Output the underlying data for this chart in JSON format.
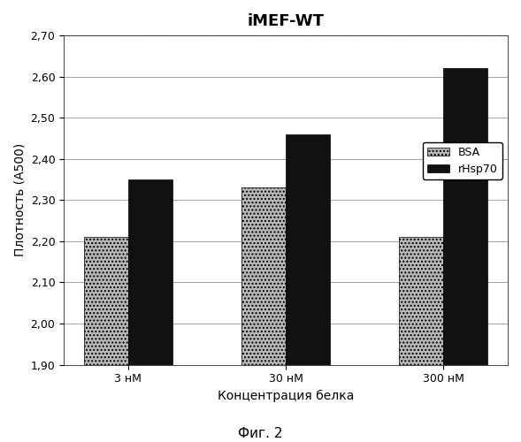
{
  "title": "iMEF-WT",
  "xlabel": "Концентрация белка",
  "ylabel": "Плотность (A500)",
  "caption": "Фиг. 2",
  "categories": [
    "3 нМ",
    "30 нМ",
    "300 нМ"
  ],
  "bsa_values": [
    2.21,
    2.33,
    2.21
  ],
  "rhsp70_values": [
    2.35,
    2.46,
    2.62
  ],
  "ylim": [
    1.9,
    2.7
  ],
  "yticks": [
    1.9,
    2.0,
    2.1,
    2.2,
    2.3,
    2.4,
    2.5,
    2.6,
    2.7
  ],
  "bsa_color": "#b8b8b8",
  "bsa_hatch": "....",
  "rhsp70_color": "#111111",
  "bar_width": 0.28,
  "legend_labels": [
    "BSA",
    "rHsp70"
  ],
  "title_fontsize": 13,
  "label_fontsize": 10,
  "tick_fontsize": 9,
  "caption_fontsize": 11
}
